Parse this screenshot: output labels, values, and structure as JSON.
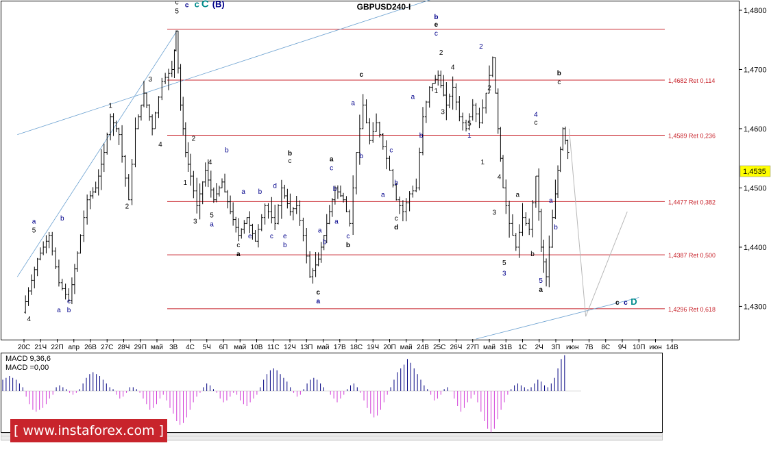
{
  "chart_data": {
    "type": "candlestick",
    "title": "GBPUSD240-I",
    "ylim": [
      1.4245,
      1.4815
    ],
    "y_ticks": [
      "1,4300",
      "1,4400",
      "1,4500",
      "1,4600",
      "1,4700",
      "1,4800"
    ],
    "y_tick_values": [
      1.43,
      1.44,
      1.45,
      1.46,
      1.47,
      1.48
    ],
    "x_ticks": [
      "20С",
      "21Ч",
      "22П",
      "апр",
      "26В",
      "27С",
      "28Ч",
      "29П",
      "май",
      "3В",
      "4С",
      "5Ч",
      "6П",
      "май",
      "10В",
      "11С",
      "12Ч",
      "13П",
      "май",
      "17В",
      "18С",
      "19Ч",
      "20П",
      "май",
      "24В",
      "25С",
      "26Ч",
      "27П",
      "май",
      "31В",
      "1С",
      "2Ч",
      "3П",
      "июн",
      "7В",
      "8С",
      "9Ч",
      "10П",
      "июн",
      "14В"
    ],
    "current_price_label": "1,4535",
    "current_price": 1.4535,
    "fib_levels": [
      {
        "label": "1,4682 Ret 0,114",
        "value": 1.4682
      },
      {
        "label": "1,4589 Ret 0,236",
        "value": 1.4589
      },
      {
        "label": "1,4477 Ret 0,382",
        "value": 1.4477
      },
      {
        "label": "1,4387 Ret 0,500",
        "value": 1.4387
      },
      {
        "label": "1,4296 Ret 0,618",
        "value": 1.4296
      }
    ],
    "price_path": [
      [
        0,
        1.429
      ],
      [
        0.9,
        1.438
      ],
      [
        1.6,
        1.442
      ],
      [
        2.2,
        1.434
      ],
      [
        2.8,
        1.431
      ],
      [
        3.3,
        1.439
      ],
      [
        3.9,
        1.448
      ],
      [
        4.4,
        1.45
      ],
      [
        4.9,
        1.456
      ],
      [
        5.3,
        1.462
      ],
      [
        5.8,
        1.459
      ],
      [
        6.4,
        1.448
      ],
      [
        6.8,
        1.46
      ],
      [
        7.3,
        1.466
      ],
      [
        7.8,
        1.46
      ],
      [
        8.4,
        1.468
      ],
      [
        9.0,
        1.47
      ],
      [
        9.2,
        1.4765
      ],
      [
        9.5,
        1.464
      ],
      [
        9.8,
        1.456
      ],
      [
        10.1,
        1.452
      ],
      [
        10.5,
        1.447
      ],
      [
        11.0,
        1.453
      ],
      [
        11.5,
        1.448
      ],
      [
        12.0,
        1.451
      ],
      [
        12.5,
        1.446
      ],
      [
        13.0,
        1.442
      ],
      [
        13.5,
        1.445
      ],
      [
        14.0,
        1.441
      ],
      [
        14.6,
        1.447
      ],
      [
        15.2,
        1.444
      ],
      [
        15.6,
        1.45
      ],
      [
        16.1,
        1.446
      ],
      [
        16.5,
        1.447
      ],
      [
        16.9,
        1.442
      ],
      [
        17.3,
        1.435
      ],
      [
        17.8,
        1.438
      ],
      [
        18.3,
        1.444
      ],
      [
        18.8,
        1.45
      ],
      [
        19.3,
        1.448
      ],
      [
        19.7,
        1.444
      ],
      [
        20.1,
        1.456
      ],
      [
        20.5,
        1.464
      ],
      [
        20.9,
        1.458
      ],
      [
        21.3,
        1.461
      ],
      [
        21.7,
        1.457
      ],
      [
        22.1,
        1.453
      ],
      [
        22.5,
        1.448
      ],
      [
        22.9,
        1.446
      ],
      [
        23.3,
        1.449
      ],
      [
        23.7,
        1.45
      ],
      [
        24.1,
        1.462
      ],
      [
        24.5,
        1.467
      ],
      [
        25.0,
        1.469
      ],
      [
        25.5,
        1.464
      ],
      [
        25.9,
        1.467
      ],
      [
        26.3,
        1.462
      ],
      [
        26.7,
        1.46
      ],
      [
        27.1,
        1.464
      ],
      [
        27.5,
        1.461
      ],
      [
        27.9,
        1.466
      ],
      [
        28.3,
        1.472
      ],
      [
        28.6,
        1.46
      ],
      [
        28.9,
        1.45
      ],
      [
        29.3,
        1.444
      ],
      [
        29.7,
        1.44
      ],
      [
        30.1,
        1.445
      ],
      [
        30.5,
        1.443
      ],
      [
        30.9,
        1.452
      ],
      [
        31.2,
        1.44
      ],
      [
        31.5,
        1.435
      ],
      [
        31.9,
        1.445
      ],
      [
        32.2,
        1.453
      ],
      [
        32.5,
        1.46
      ],
      [
        32.8,
        1.456
      ]
    ],
    "projection": [
      [
        32.8,
        1.46
      ],
      [
        33.8,
        1.4283
      ],
      [
        36.3,
        1.446
      ]
    ],
    "trendlines": [
      {
        "from": [
          -0.4,
          1.435
        ],
        "to": [
          9.2,
          1.4765
        ]
      },
      {
        "from": [
          -0.4,
          1.459
        ],
        "to": [
          24.7,
          1.482
        ]
      },
      {
        "from": [
          27.2,
          1.4245
        ],
        "to": [
          37.0,
          1.4315
        ]
      }
    ],
    "wave_labels": [
      {
        "text": "4",
        "x": 0.3,
        "y": 1.4275,
        "color": "#000"
      },
      {
        "text": "a",
        "x": 0.6,
        "y": 1.444,
        "color": "#00008b"
      },
      {
        "text": "5",
        "x": 0.6,
        "y": 1.4425,
        "color": "#000"
      },
      {
        "text": "b",
        "x": 2.3,
        "y": 1.4445,
        "color": "#00008b"
      },
      {
        "text": "a",
        "x": 2.1,
        "y": 1.429,
        "color": "#00008b"
      },
      {
        "text": "c",
        "x": 2.7,
        "y": 1.4305,
        "color": "#00008b"
      },
      {
        "text": "b",
        "x": 2.7,
        "y": 1.429,
        "color": "#00008b"
      },
      {
        "text": "1",
        "x": 5.2,
        "y": 1.4635,
        "color": "#000"
      },
      {
        "text": "2",
        "x": 6.2,
        "y": 1.4465,
        "color": "#000"
      },
      {
        "text": "3",
        "x": 7.6,
        "y": 1.468,
        "color": "#000"
      },
      {
        "text": "4",
        "x": 8.2,
        "y": 1.457,
        "color": "#000"
      },
      {
        "text": "c",
        "x": 9.2,
        "y": 1.481,
        "color": "#000"
      },
      {
        "text": "5",
        "x": 9.2,
        "y": 1.4795,
        "color": "#000"
      },
      {
        "text": "c",
        "x": 9.8,
        "y": 1.4805,
        "color": "#00008b",
        "bold": true
      },
      {
        "text": "c",
        "x": 10.4,
        "y": 1.4805,
        "color": "#008b8b",
        "bold": true,
        "size": 13
      },
      {
        "text": "C",
        "x": 10.9,
        "y": 1.4805,
        "color": "#008b8b",
        "bold": true,
        "size": 15
      },
      {
        "text": "(B)",
        "x": 11.7,
        "y": 1.4805,
        "color": "#00008b",
        "bold": true,
        "size": 13
      },
      {
        "text": "2",
        "x": 10.2,
        "y": 1.458,
        "color": "#000"
      },
      {
        "text": "1",
        "x": 9.7,
        "y": 1.4505,
        "color": "#000"
      },
      {
        "text": "3",
        "x": 10.3,
        "y": 1.444,
        "color": "#000"
      },
      {
        "text": "4",
        "x": 11.2,
        "y": 1.454,
        "color": "#000"
      },
      {
        "text": "b",
        "x": 12.2,
        "y": 1.456,
        "color": "#00008b"
      },
      {
        "text": "5",
        "x": 11.3,
        "y": 1.445,
        "color": "#000"
      },
      {
        "text": "a",
        "x": 11.3,
        "y": 1.4435,
        "color": "#00008b"
      },
      {
        "text": "a",
        "x": 13.2,
        "y": 1.449,
        "color": "#00008b"
      },
      {
        "text": "b",
        "x": 14.2,
        "y": 1.449,
        "color": "#00008b"
      },
      {
        "text": "c",
        "x": 12.9,
        "y": 1.44,
        "color": "#000"
      },
      {
        "text": "a",
        "x": 12.9,
        "y": 1.4385,
        "color": "#000",
        "bold": true
      },
      {
        "text": "e",
        "x": 13.6,
        "y": 1.4415,
        "color": "#00008b"
      },
      {
        "text": "d",
        "x": 15.1,
        "y": 1.45,
        "color": "#00008b"
      },
      {
        "text": "c",
        "x": 14.9,
        "y": 1.4415,
        "color": "#00008b"
      },
      {
        "text": "e",
        "x": 15.7,
        "y": 1.4415,
        "color": "#00008b"
      },
      {
        "text": "b",
        "x": 15.7,
        "y": 1.44,
        "color": "#00008b"
      },
      {
        "text": "b",
        "x": 16.0,
        "y": 1.4555,
        "color": "#000",
        "bold": true
      },
      {
        "text": "c",
        "x": 16.0,
        "y": 1.4542,
        "color": "#000"
      },
      {
        "text": "c",
        "x": 17.7,
        "y": 1.432,
        "color": "#000",
        "bold": true
      },
      {
        "text": "a",
        "x": 17.7,
        "y": 1.4305,
        "color": "#00008b",
        "bold": true
      },
      {
        "text": "a",
        "x": 17.8,
        "y": 1.4425,
        "color": "#00008b"
      },
      {
        "text": "b",
        "x": 18.1,
        "y": 1.4405,
        "color": "#00008b"
      },
      {
        "text": "a",
        "x": 18.5,
        "y": 1.4545,
        "color": "#000",
        "bold": true
      },
      {
        "text": "c",
        "x": 18.5,
        "y": 1.453,
        "color": "#00008b"
      },
      {
        "text": "b",
        "x": 18.7,
        "y": 1.4495,
        "color": "#00008b"
      },
      {
        "text": "a",
        "x": 18.8,
        "y": 1.444,
        "color": "#00008b"
      },
      {
        "text": "c",
        "x": 19.5,
        "y": 1.4415,
        "color": "#00008b"
      },
      {
        "text": "b",
        "x": 19.5,
        "y": 1.44,
        "color": "#000",
        "bold": true
      },
      {
        "text": "c",
        "x": 20.3,
        "y": 1.4688,
        "color": "#000",
        "bold": true
      },
      {
        "text": "a",
        "x": 19.8,
        "y": 1.464,
        "color": "#00008b"
      },
      {
        "text": "b",
        "x": 20.3,
        "y": 1.455,
        "color": "#00008b"
      },
      {
        "text": "c",
        "x": 22.1,
        "y": 1.456,
        "color": "#00008b"
      },
      {
        "text": "a",
        "x": 21.6,
        "y": 1.4485,
        "color": "#00008b"
      },
      {
        "text": "b",
        "x": 22.4,
        "y": 1.4505,
        "color": "#00008b"
      },
      {
        "text": "c",
        "x": 22.4,
        "y": 1.4445,
        "color": "#000"
      },
      {
        "text": "d",
        "x": 22.4,
        "y": 1.443,
        "color": "#000",
        "bold": true
      },
      {
        "text": "a",
        "x": 23.4,
        "y": 1.465,
        "color": "#00008b"
      },
      {
        "text": "b",
        "x": 23.9,
        "y": 1.4585,
        "color": "#00008b"
      },
      {
        "text": "b",
        "x": 24.8,
        "y": 1.4785,
        "color": "#00008b",
        "bold": true
      },
      {
        "text": "e",
        "x": 24.8,
        "y": 1.4772,
        "color": "#000",
        "bold": true
      },
      {
        "text": "c",
        "x": 24.8,
        "y": 1.4757,
        "color": "#00008b"
      },
      {
        "text": "2",
        "x": 25.1,
        "y": 1.4725,
        "color": "#000"
      },
      {
        "text": "1",
        "x": 24.8,
        "y": 1.466,
        "color": "#000"
      },
      {
        "text": "3",
        "x": 25.2,
        "y": 1.4625,
        "color": "#000"
      },
      {
        "text": "4",
        "x": 25.8,
        "y": 1.47,
        "color": "#000"
      },
      {
        "text": "5",
        "x": 26.8,
        "y": 1.4605,
        "color": "#000"
      },
      {
        "text": "1",
        "x": 26.8,
        "y": 1.4585,
        "color": "#00008b"
      },
      {
        "text": "2",
        "x": 27.5,
        "y": 1.4735,
        "color": "#00008b"
      },
      {
        "text": "2",
        "x": 28.0,
        "y": 1.4665,
        "color": "#000"
      },
      {
        "text": "1",
        "x": 27.6,
        "y": 1.454,
        "color": "#000"
      },
      {
        "text": "4",
        "x": 28.6,
        "y": 1.4515,
        "color": "#000"
      },
      {
        "text": "3",
        "x": 28.3,
        "y": 1.4455,
        "color": "#000"
      },
      {
        "text": "a",
        "x": 29.7,
        "y": 1.4485,
        "color": "#000"
      },
      {
        "text": "5",
        "x": 28.9,
        "y": 1.437,
        "color": "#000"
      },
      {
        "text": "3",
        "x": 28.9,
        "y": 1.4352,
        "color": "#00008b"
      },
      {
        "text": "b",
        "x": 30.6,
        "y": 1.4385,
        "color": "#000"
      },
      {
        "text": "4",
        "x": 30.8,
        "y": 1.462,
        "color": "#00008b"
      },
      {
        "text": "c",
        "x": 30.8,
        "y": 1.4607,
        "color": "#000"
      },
      {
        "text": "5",
        "x": 31.1,
        "y": 1.434,
        "color": "#00008b"
      },
      {
        "text": "a",
        "x": 31.1,
        "y": 1.4325,
        "color": "#000",
        "bold": true
      },
      {
        "text": "a",
        "x": 31.7,
        "y": 1.4475,
        "color": "#00008b"
      },
      {
        "text": "b",
        "x": 32.0,
        "y": 1.443,
        "color": "#00008b"
      },
      {
        "text": "b",
        "x": 32.2,
        "y": 1.469,
        "color": "#000",
        "bold": true
      },
      {
        "text": "c",
        "x": 32.2,
        "y": 1.4675,
        "color": "#000"
      },
      {
        "text": "c",
        "x": 35.7,
        "y": 1.4303,
        "color": "#000",
        "bold": true
      },
      {
        "text": "c",
        "x": 36.2,
        "y": 1.4303,
        "color": "#00008b",
        "bold": true
      },
      {
        "text": "D",
        "x": 36.7,
        "y": 1.4303,
        "color": "#008b8b",
        "bold": true,
        "size": 13
      }
    ],
    "macd": {
      "label_line1": "MACD 9,36,6",
      "label_line2": "MACD =0,00",
      "hist": [
        0.3,
        0.35,
        0.4,
        0.35,
        0.3,
        0.2,
        0.1,
        -0.15,
        -0.35,
        -0.5,
        -0.55,
        -0.5,
        -0.45,
        -0.35,
        -0.2,
        -0.1,
        0.1,
        0.15,
        0.1,
        0.05,
        -0.05,
        -0.1,
        -0.05,
        0.05,
        0.2,
        0.35,
        0.45,
        0.5,
        0.45,
        0.4,
        0.3,
        0.2,
        0.1,
        0.05,
        -0.1,
        -0.2,
        -0.15,
        -0.05,
        0.1,
        0.1,
        0.05,
        -0.05,
        -0.2,
        -0.35,
        -0.5,
        -0.45,
        -0.35,
        -0.2,
        -0.1,
        -0.25,
        -0.45,
        -0.6,
        -0.8,
        -0.9,
        -0.85,
        -0.7,
        -0.5,
        -0.3,
        -0.15,
        -0.05,
        0.1,
        0.2,
        0.15,
        0.05,
        -0.05,
        -0.2,
        -0.3,
        -0.25,
        -0.15,
        -0.05,
        -0.1,
        -0.25,
        -0.35,
        -0.4,
        -0.3,
        -0.2,
        -0.1,
        0.1,
        0.3,
        0.45,
        0.55,
        0.6,
        0.55,
        0.45,
        0.35,
        0.25,
        0.1,
        -0.05,
        -0.15,
        -0.1,
        0.05,
        0.2,
        0.3,
        0.35,
        0.3,
        0.2,
        0.1,
        0.0,
        -0.1,
        -0.2,
        -0.3,
        -0.2,
        -0.1,
        0.05,
        0.15,
        0.2,
        0.1,
        -0.05,
        -0.25,
        -0.45,
        -0.6,
        -0.7,
        -0.65,
        -0.5,
        -0.3,
        -0.1,
        0.1,
        0.3,
        0.5,
        0.6,
        0.7,
        0.85,
        0.75,
        0.6,
        0.45,
        0.3,
        0.15,
        0.05,
        -0.1,
        -0.25,
        -0.2,
        -0.1,
        0.05,
        0.1,
        0.0,
        -0.2,
        -0.4,
        -0.55,
        -0.45,
        -0.3,
        -0.2,
        -0.1,
        -0.3,
        -0.55,
        -0.8,
        -1.0,
        -1.1,
        -1.0,
        -0.75,
        -0.5,
        -0.3,
        -0.1,
        0.05,
        0.15,
        0.2,
        0.15,
        0.1,
        0.05,
        0.1,
        0.2,
        0.3,
        0.25,
        0.15,
        0.1,
        0.2,
        0.35,
        0.6,
        0.85,
        0.95
      ]
    },
    "watermark_text": "[ www.instaforex.com ]"
  }
}
